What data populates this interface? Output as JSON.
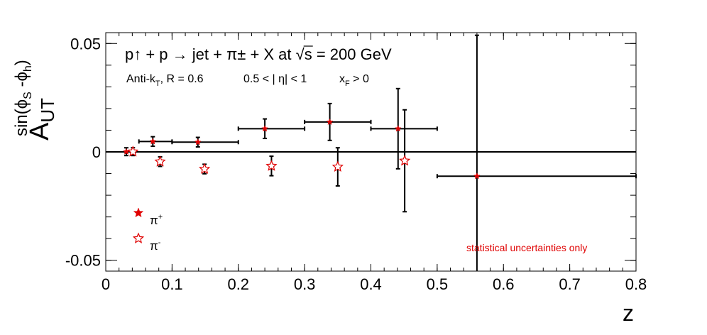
{
  "chart_data": {
    "type": "scatter",
    "title": "p↑ + p → jet + π± + X at √s = 200 GeV",
    "subtitle": {
      "antikt_prefix": "Anti-k",
      "antikt_sub": "T",
      "antikt_rest": ", R = 0.6",
      "eta_cut": "0.5 < | η| < 1",
      "xf_prefix": "x",
      "xf_sub": "F",
      "xf_rest": " > 0"
    },
    "xlabel": "z",
    "ylabel": {
      "base": "A",
      "sub": "UT",
      "sup": "sin(ϕ",
      "sup_s": "S",
      "sup_mid": " -ϕ",
      "sup_h": "h",
      "sup_end": ")"
    },
    "xlim": [
      0,
      0.8
    ],
    "ylim": [
      -0.055,
      0.055
    ],
    "x_ticks": [
      0,
      0.1,
      0.2,
      0.3,
      0.4,
      0.5,
      0.6,
      0.7,
      0.8
    ],
    "x_tick_labels": [
      "0",
      "0.1",
      "0.2",
      "0.3",
      "0.4",
      "0.5",
      "0.6",
      "0.7",
      "0.8"
    ],
    "y_ticks": [
      -0.05,
      0,
      0.05
    ],
    "y_tick_labels": [
      "-0.05",
      "0",
      "0.05"
    ],
    "annotation": "statistical uncertainties only",
    "annotation_color": "#e00000",
    "marker_color": "#e00000",
    "series": [
      {
        "name": "π+",
        "label_base": "π",
        "label_sup": "+",
        "marker": "filled-star",
        "points": [
          {
            "x": 0.031,
            "y": 0.0001,
            "xerr": [
              0.031,
              0.041
            ],
            "yerr": 0.0018
          },
          {
            "x": 0.071,
            "y": 0.0048,
            "xerr": [
              0.05,
              0.1
            ],
            "yerr": 0.0022
          },
          {
            "x": 0.139,
            "y": 0.0045,
            "xerr": [
              0.1,
              0.2
            ],
            "yerr": 0.0022
          },
          {
            "x": 0.24,
            "y": 0.0107,
            "xerr": [
              0.2,
              0.3
            ],
            "yerr": 0.0045
          },
          {
            "x": 0.338,
            "y": 0.0138,
            "xerr": [
              0.3,
              0.4
            ],
            "yerr": 0.0085
          },
          {
            "x": 0.441,
            "y": 0.0107,
            "xerr": [
              0.4,
              0.5
            ],
            "yerr": 0.0185
          },
          {
            "x": 0.56,
            "y": -0.0112,
            "xerr": [
              0.5,
              0.8
            ],
            "yerr": 0.065
          }
        ]
      },
      {
        "name": "π-",
        "label_base": "π",
        "label_sup": "-",
        "marker": "open-star",
        "points": [
          {
            "x": 0.041,
            "y": 0.0001,
            "yerr": 0.0018
          },
          {
            "x": 0.082,
            "y": -0.0045,
            "yerr": 0.0022
          },
          {
            "x": 0.149,
            "y": -0.0079,
            "yerr": 0.0022
          },
          {
            "x": 0.25,
            "y": -0.0065,
            "yerr": 0.0045
          },
          {
            "x": 0.35,
            "y": -0.0069,
            "yerr": 0.0088
          },
          {
            "x": 0.451,
            "y": -0.0041,
            "yerr": 0.0235
          }
        ]
      }
    ],
    "grid": false,
    "legend_placement": "bottom-left"
  }
}
